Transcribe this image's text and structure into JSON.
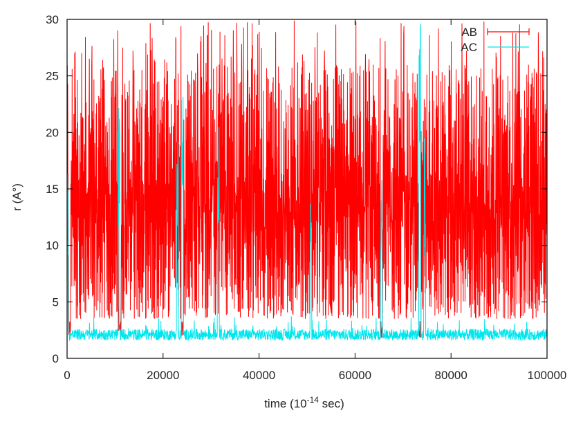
{
  "chart_data": {
    "type": "line",
    "title": "",
    "xlabel_main": "time (10",
    "xlabel_exp": "-14",
    "xlabel_tail": " sec)",
    "ylabel": "r (A°)",
    "xlim": [
      0,
      100000
    ],
    "ylim": [
      0,
      30
    ],
    "xticks": [
      0,
      20000,
      40000,
      60000,
      80000,
      100000
    ],
    "yticks": [
      0,
      5,
      10,
      15,
      20,
      25,
      30
    ],
    "xtick_labels": [
      "0",
      "20000",
      "40000",
      "60000",
      "80000",
      "100000"
    ],
    "ytick_labels": [
      "0",
      "5",
      "10",
      "15",
      "20",
      "25",
      "30"
    ],
    "grid": false,
    "legend_position": "top-right",
    "series": [
      {
        "name": "AB",
        "color": "#ff0000",
        "typical_range": [
          3.5,
          26
        ],
        "min": 1.8,
        "max": 30,
        "dips_to_min_at": [
          500,
          11000,
          24000,
          65500,
          73500
        ]
      },
      {
        "name": "AC",
        "color": "#00e5ee",
        "baseline_range": [
          1.6,
          2.6
        ],
        "spikes": [
          {
            "x": 200,
            "y": 17
          },
          {
            "x": 10800,
            "y": 25.5
          },
          {
            "x": 23000,
            "y": 21
          },
          {
            "x": 24000,
            "y": 24
          },
          {
            "x": 31500,
            "y": 27.5
          },
          {
            "x": 50800,
            "y": 14
          },
          {
            "x": 65500,
            "y": 16
          },
          {
            "x": 73500,
            "y": 30
          },
          {
            "x": 74500,
            "y": 20
          }
        ]
      }
    ]
  }
}
